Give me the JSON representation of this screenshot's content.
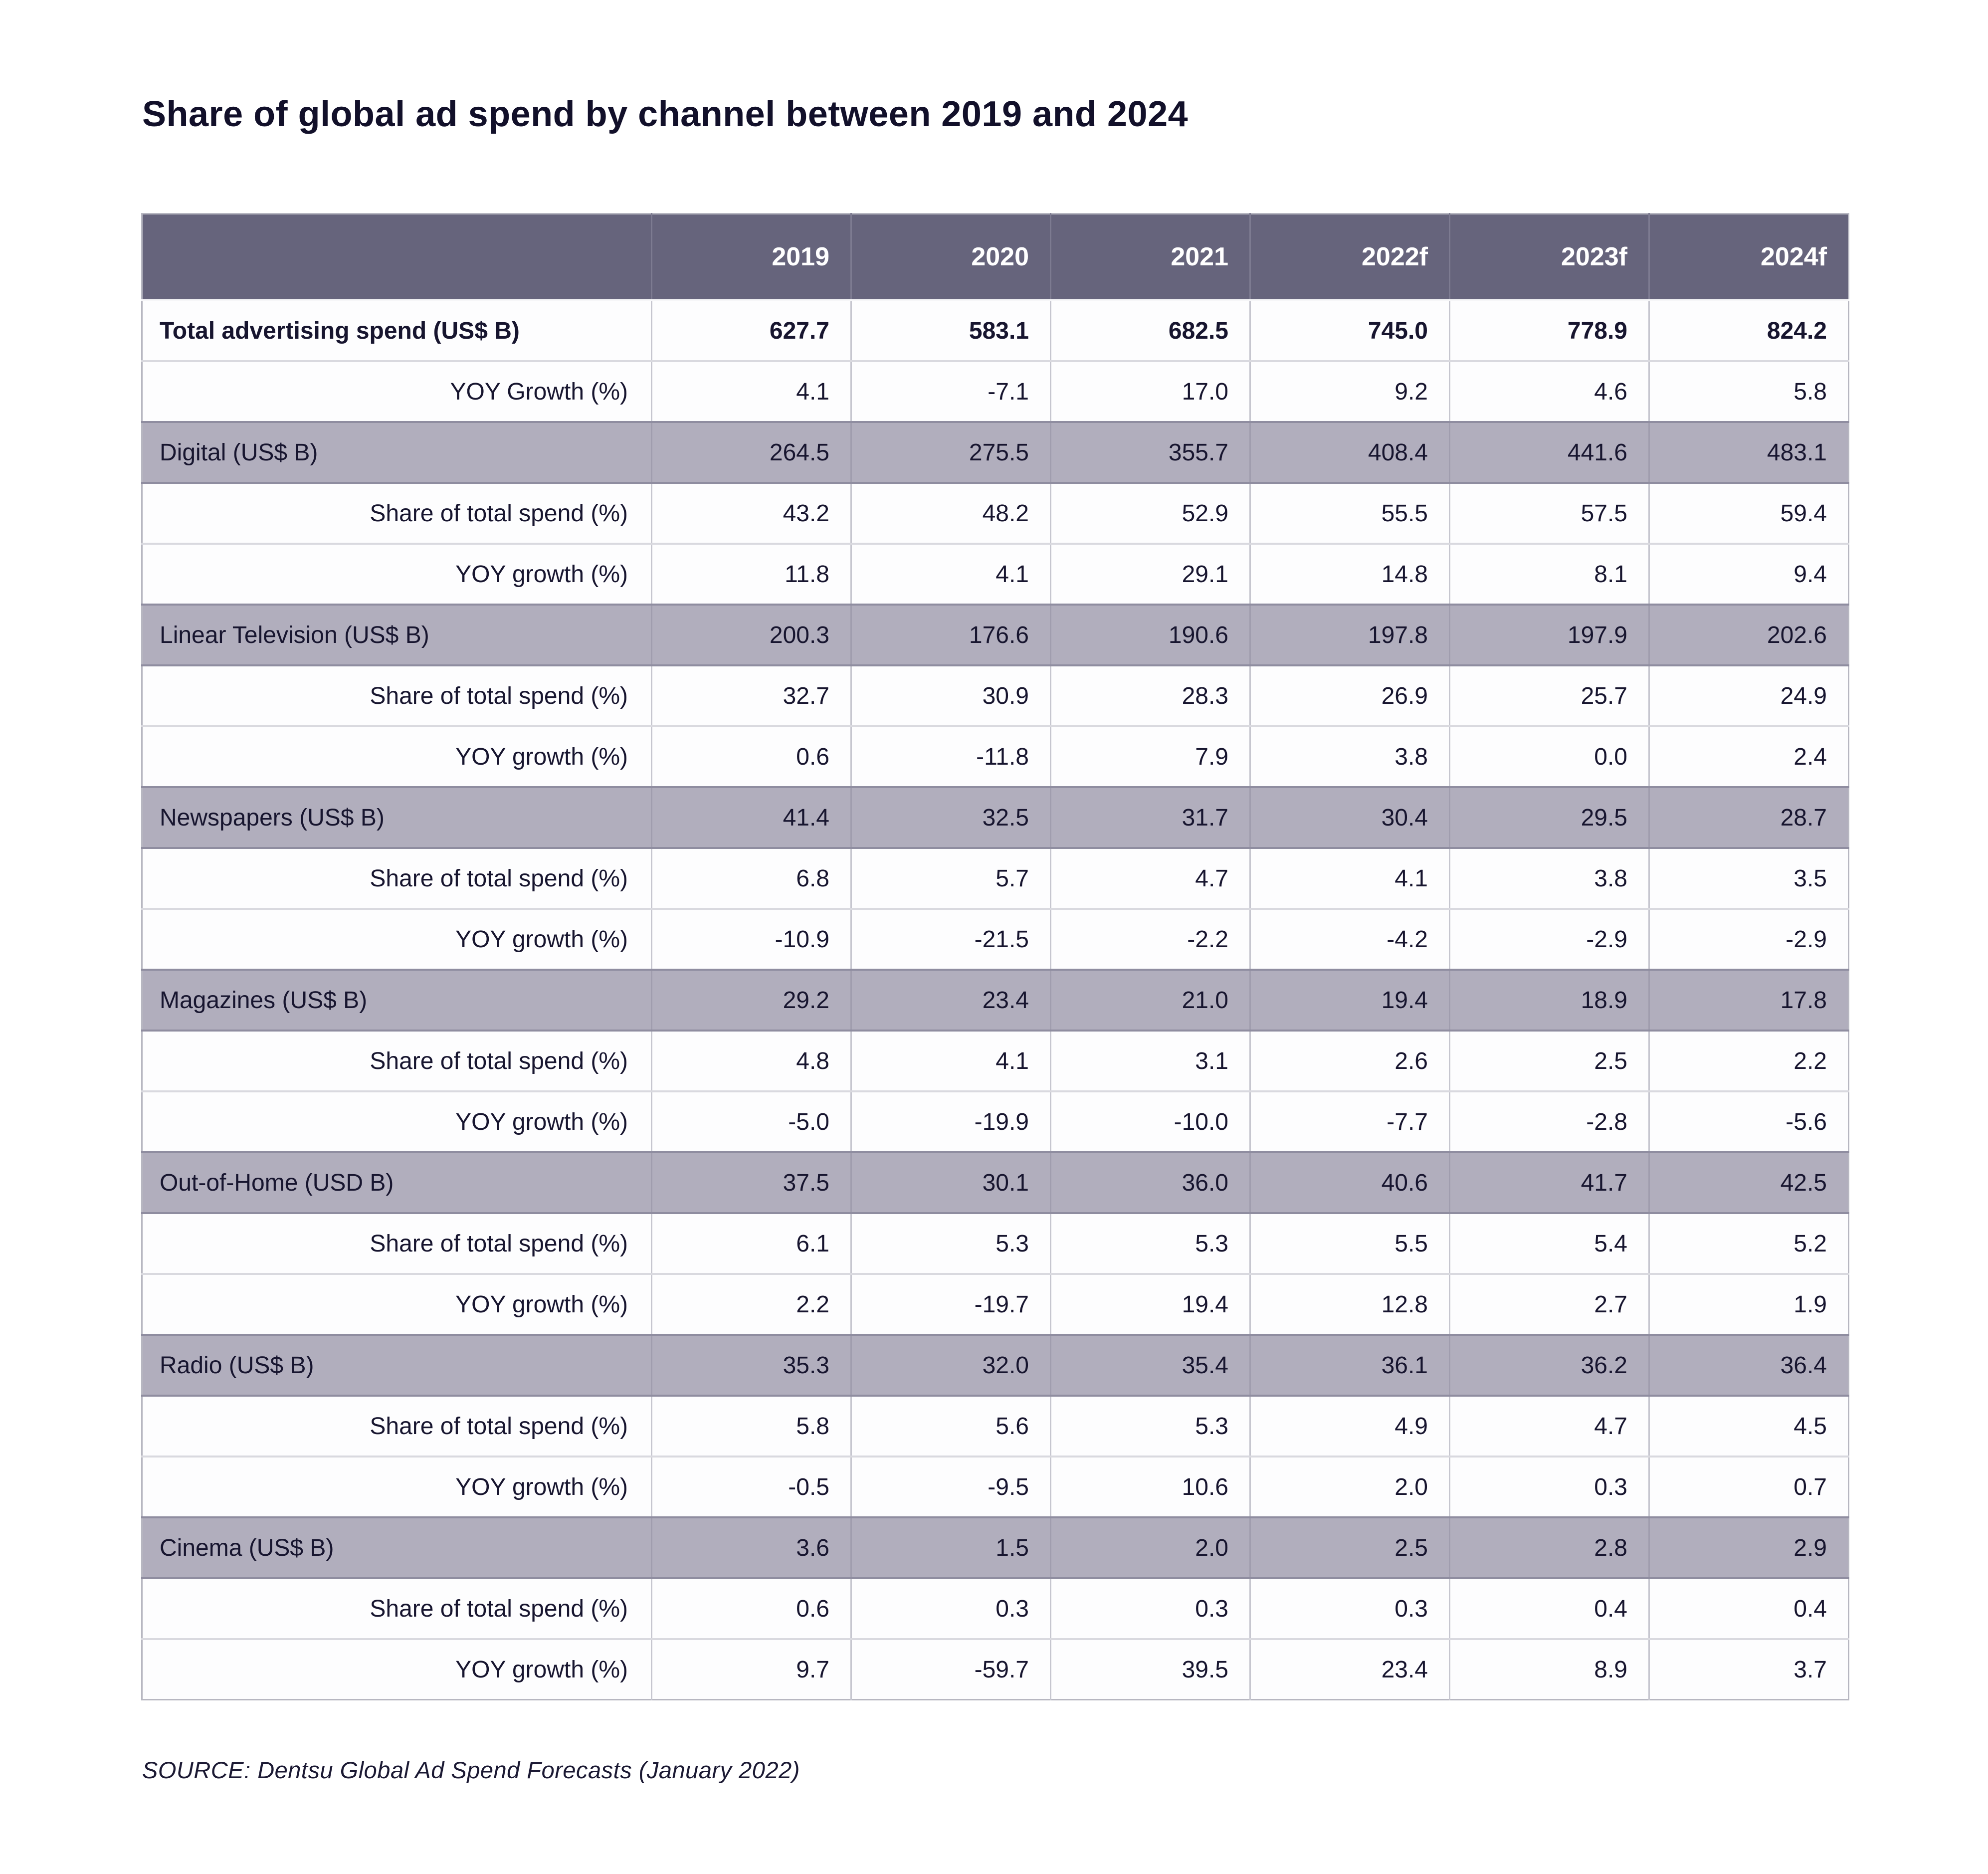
{
  "title": "Share of global ad spend by channel between 2019 and 2024",
  "source": "SOURCE: Dentsu Global Ad Spend Forecasts (January 2022)",
  "colors": {
    "header_background": "#66647c",
    "header_text": "#ffffff",
    "category_row_background": "#b1aebd",
    "body_text": "#17152f",
    "gridline": "#c6c6cf"
  },
  "chart_data": {
    "type": "table",
    "title": "Share of global ad spend by channel between 2019 and 2024",
    "columns": [
      "",
      "2019",
      "2020",
      "2021",
      "2022f",
      "2023f",
      "2024f"
    ],
    "rows": [
      {
        "label": "Total advertising spend (US$ B)",
        "style": "total",
        "values": [
          "627.7",
          "583.1",
          "682.5",
          "745.0",
          "778.9",
          "824.2"
        ]
      },
      {
        "label": "YOY Growth (%)",
        "style": "sub",
        "values": [
          "4.1",
          "-7.1",
          "17.0",
          "9.2",
          "4.6",
          "5.8"
        ]
      },
      {
        "label": "Digital (US$ B)",
        "style": "category",
        "values": [
          "264.5",
          "275.5",
          "355.7",
          "408.4",
          "441.6",
          "483.1"
        ]
      },
      {
        "label": "Share of total spend (%)",
        "style": "sub",
        "values": [
          "43.2",
          "48.2",
          "52.9",
          "55.5",
          "57.5",
          "59.4"
        ]
      },
      {
        "label": "YOY growth (%)",
        "style": "sub",
        "values": [
          "11.8",
          "4.1",
          "29.1",
          "14.8",
          "8.1",
          "9.4"
        ]
      },
      {
        "label": "Linear Television (US$ B)",
        "style": "category",
        "values": [
          "200.3",
          "176.6",
          "190.6",
          "197.8",
          "197.9",
          "202.6"
        ]
      },
      {
        "label": "Share of total spend (%)",
        "style": "sub",
        "values": [
          "32.7",
          "30.9",
          "28.3",
          "26.9",
          "25.7",
          "24.9"
        ]
      },
      {
        "label": "YOY growth (%)",
        "style": "sub",
        "values": [
          "0.6",
          "-11.8",
          "7.9",
          "3.8",
          "0.0",
          "2.4"
        ]
      },
      {
        "label": "Newspapers (US$ B)",
        "style": "category",
        "values": [
          "41.4",
          "32.5",
          "31.7",
          "30.4",
          "29.5",
          "28.7"
        ]
      },
      {
        "label": "Share of total spend (%)",
        "style": "sub",
        "values": [
          "6.8",
          "5.7",
          "4.7",
          "4.1",
          "3.8",
          "3.5"
        ]
      },
      {
        "label": "YOY growth (%)",
        "style": "sub",
        "values": [
          "-10.9",
          "-21.5",
          "-2.2",
          "-4.2",
          "-2.9",
          "-2.9"
        ]
      },
      {
        "label": "Magazines (US$ B)",
        "style": "category",
        "values": [
          "29.2",
          "23.4",
          "21.0",
          "19.4",
          "18.9",
          "17.8"
        ]
      },
      {
        "label": "Share of total spend (%)",
        "style": "sub",
        "values": [
          "4.8",
          "4.1",
          "3.1",
          "2.6",
          "2.5",
          "2.2"
        ]
      },
      {
        "label": "YOY growth (%)",
        "style": "sub",
        "values": [
          "-5.0",
          "-19.9",
          "-10.0",
          "-7.7",
          "-2.8",
          "-5.6"
        ]
      },
      {
        "label": "Out-of-Home (USD B)",
        "style": "category",
        "values": [
          "37.5",
          "30.1",
          "36.0",
          "40.6",
          "41.7",
          "42.5"
        ]
      },
      {
        "label": "Share of total spend (%)",
        "style": "sub",
        "values": [
          "6.1",
          "5.3",
          "5.3",
          "5.5",
          "5.4",
          "5.2"
        ]
      },
      {
        "label": "YOY growth (%)",
        "style": "sub",
        "values": [
          "2.2",
          "-19.7",
          "19.4",
          "12.8",
          "2.7",
          "1.9"
        ]
      },
      {
        "label": "Radio (US$ B)",
        "style": "category",
        "values": [
          "35.3",
          "32.0",
          "35.4",
          "36.1",
          "36.2",
          "36.4"
        ]
      },
      {
        "label": "Share of total spend (%)",
        "style": "sub",
        "values": [
          "5.8",
          "5.6",
          "5.3",
          "4.9",
          "4.7",
          "4.5"
        ]
      },
      {
        "label": "YOY growth (%)",
        "style": "sub",
        "values": [
          "-0.5",
          "-9.5",
          "10.6",
          "2.0",
          "0.3",
          "0.7"
        ]
      },
      {
        "label": "Cinema (US$ B)",
        "style": "category",
        "values": [
          "3.6",
          "1.5",
          "2.0",
          "2.5",
          "2.8",
          "2.9"
        ]
      },
      {
        "label": "Share of total spend (%)",
        "style": "sub",
        "values": [
          "0.6",
          "0.3",
          "0.3",
          "0.3",
          "0.4",
          "0.4"
        ]
      },
      {
        "label": "YOY growth (%)",
        "style": "sub",
        "values": [
          "9.7",
          "-59.7",
          "39.5",
          "23.4",
          "8.9",
          "3.7"
        ]
      }
    ]
  }
}
